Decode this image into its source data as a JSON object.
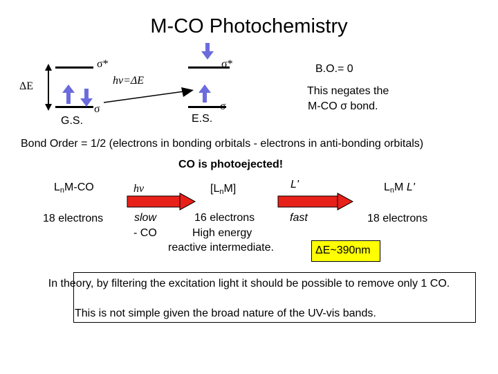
{
  "title": "M-CO Photochemistry",
  "diagram": {
    "ground_state": {
      "sigma_star": "σ*",
      "sigma": "σ",
      "label": "G.S."
    },
    "excited_state": {
      "sigma_star": "σ*",
      "sigma": "σ",
      "label": "E.S."
    },
    "delta_e": "ΔE",
    "excitation": "hν=ΔE",
    "bond_order_zero": "B.O.= 0",
    "negates_line1": "This negates the",
    "negates_line2": "M-CO σ bond."
  },
  "bond_order_formula": "Bond Order = 1/2 (electrons in bonding orbitals - electrons in anti-bonding orbitals)",
  "co_photoejected": "CO is photoejected!",
  "scheme": {
    "reactant_prefix": "L",
    "reactant_sub": "n",
    "reactant_suffix": "M-CO",
    "reactant_electrons": "18 electrons",
    "step1_label": "hν",
    "step1_rate": "slow",
    "step1_loss": "- CO",
    "intermediate_prefix": "[L",
    "intermediate_sub": "n",
    "intermediate_suffix": "M]",
    "intermediate_electrons": "16 electrons",
    "intermediate_energy": "High energy",
    "intermediate_desc": "reactive intermediate.",
    "step2_ligand": "L'",
    "step2_rate": "fast",
    "product_prefix": "L",
    "product_sub": "n",
    "product_mid": "M ",
    "product_ligand": "L'",
    "product_electrons": "18 electrons",
    "wavelength": "ΔE~390nm"
  },
  "note_line1": "In theory, by filtering the excitation light it should be possible to remove only 1 CO.",
  "note_line2": "This is not simple given the broad nature of the UV-vis bands.",
  "colors": {
    "arrow": "#e8201a",
    "highlight": "#ffff00"
  }
}
